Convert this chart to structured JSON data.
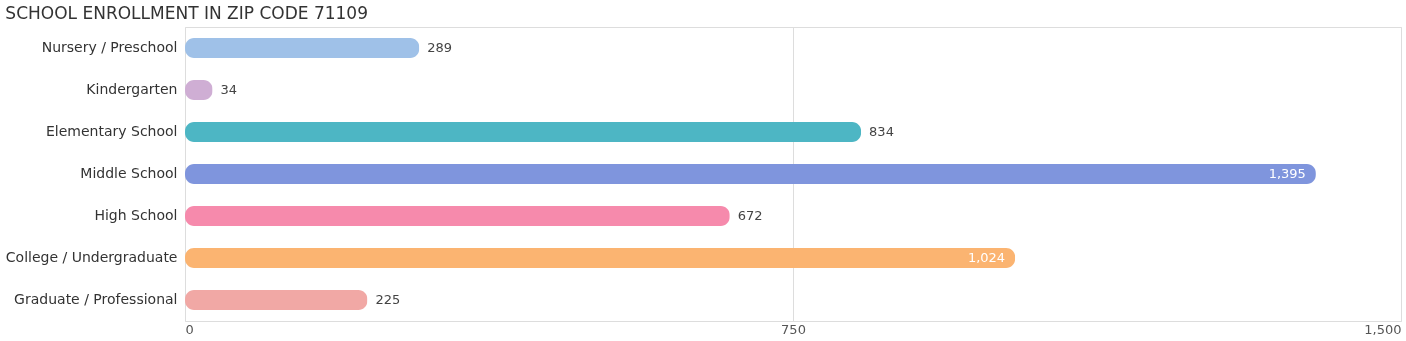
{
  "chart_data": {
    "type": "bar",
    "orientation": "horizontal",
    "title": "SCHOOL ENROLLMENT IN ZIP CODE 71109",
    "categories": [
      "Nursery / Preschool",
      "Kindergarten",
      "Elementary School",
      "Middle School",
      "High School",
      "College / Undergraduate",
      "Graduate / Professional"
    ],
    "values": [
      289,
      34,
      834,
      1395,
      672,
      1024,
      225
    ],
    "colors": [
      "#9fc1e8",
      "#cfaed4",
      "#4db6c4",
      "#7f95dd",
      "#f68aac",
      "#fbb471",
      "#f1a8a5"
    ],
    "value_labels": [
      "289",
      "34",
      "834",
      "1,395",
      "672",
      "1,024",
      "225"
    ],
    "xlim": [
      0,
      1500
    ],
    "xticks": [
      0,
      750,
      {
        "value": 1500,
        "label": "1,500"
      }
    ],
    "grid": "x"
  }
}
